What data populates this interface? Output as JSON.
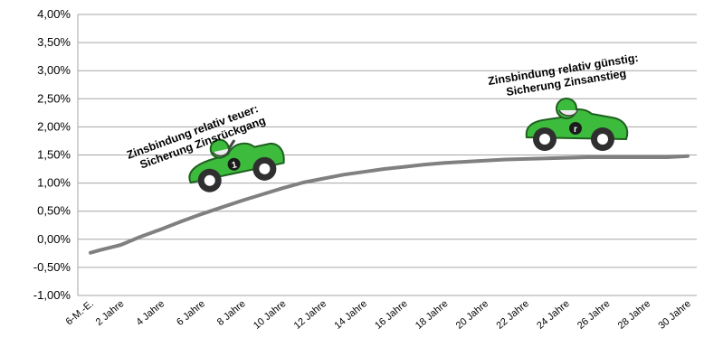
{
  "chart_data": {
    "type": "line",
    "x_categories": [
      "6-M.-E.",
      "2 Jahre",
      "4 Jahre",
      "6 Jahre",
      "8 Jahre",
      "10 Jahre",
      "12 Jahre",
      "14 Jahre",
      "16 Jahre",
      "18 Jahre",
      "20 Jahre",
      "22 Jahre",
      "24 Jahre",
      "26 Jahre",
      "28 Jahre",
      "30 Jahre"
    ],
    "x": [
      0.5,
      1,
      2,
      3,
      4,
      5,
      6,
      7,
      8,
      9,
      10,
      11,
      12,
      13,
      14,
      15,
      16,
      17,
      18,
      19,
      20,
      21,
      22,
      23,
      24,
      25,
      26,
      27,
      28,
      29,
      30
    ],
    "series": [
      {
        "values": [
          -0.24,
          -0.19,
          -0.1,
          0.05,
          0.18,
          0.32,
          0.45,
          0.57,
          0.69,
          0.8,
          0.91,
          1.01,
          1.08,
          1.15,
          1.2,
          1.25,
          1.29,
          1.33,
          1.36,
          1.38,
          1.4,
          1.42,
          1.43,
          1.44,
          1.45,
          1.46,
          1.46,
          1.46,
          1.46,
          1.46,
          1.48
        ],
        "color": "#808080"
      }
    ],
    "y_ticks": [
      "4,00%",
      "3,50%",
      "3,00%",
      "2,50%",
      "2,00%",
      "1,50%",
      "1,00%",
      "0,50%",
      "0,00%",
      "-0,50%",
      "-1,00%"
    ],
    "ylim": [
      -1.0,
      4.0
    ],
    "grid": true,
    "annotations": [
      {
        "lines": [
          "Zinsbindung relativ teuer:",
          "Sicherung Zinsrückgang"
        ],
        "icon": "car-icon",
        "car_number": "1"
      },
      {
        "lines": [
          "Zinsbindung relativ günstig:",
          "Sicherung Zinsanstieg"
        ],
        "icon": "car-icon",
        "car_number": "r"
      }
    ],
    "colors": {
      "line": "#808080",
      "grid": "#a6a6a6",
      "car_body": "#3dbb3d",
      "car_dark": "#1f7a1f",
      "wheel": "#333333"
    }
  }
}
